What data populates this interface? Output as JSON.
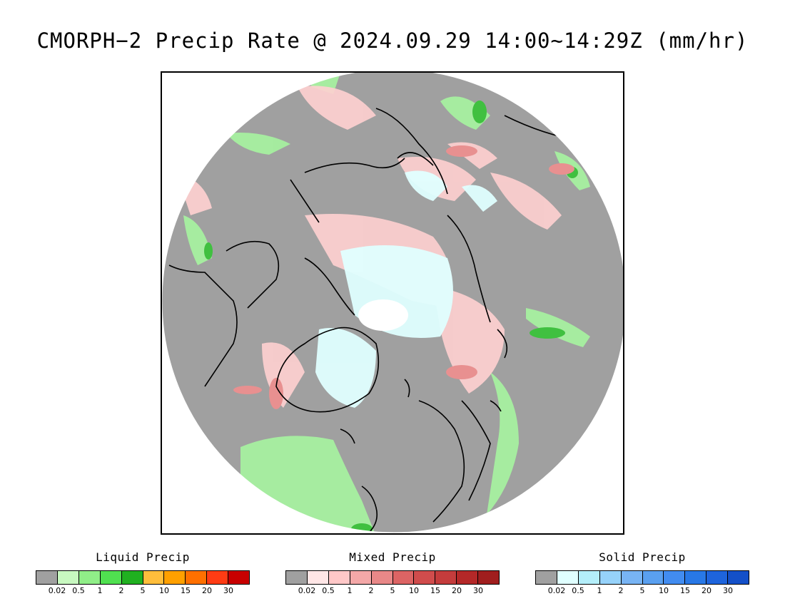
{
  "title": "CMORPH−2 Precip Rate @ 2024.09.29 14:00~14:29Z (mm/hr)",
  "map": {
    "projection": "north polar stereographic",
    "background_color": "#a0a0a0",
    "coastline_color": "#000000"
  },
  "legends": [
    {
      "title": "Liquid Precip",
      "colors": [
        "#a0a0a0",
        "#c8f8c0",
        "#90ee88",
        "#50e050",
        "#20b020",
        "#ffbe3c",
        "#ffa000",
        "#ff7000",
        "#ff3c14",
        "#c80000"
      ],
      "ticks": [
        "0.02",
        "0.5",
        "1",
        "2",
        "5",
        "10",
        "15",
        "20",
        "30"
      ]
    },
    {
      "title": "Mixed Precip",
      "colors": [
        "#a0a0a0",
        "#ffe6e6",
        "#ffc8c8",
        "#f4a8a8",
        "#e88888",
        "#dc6464",
        "#d04c4c",
        "#c43c3c",
        "#b42828",
        "#a01e1e"
      ],
      "ticks": [
        "0.02",
        "0.5",
        "1",
        "2",
        "5",
        "10",
        "15",
        "20",
        "30"
      ]
    },
    {
      "title": "Solid Precip",
      "colors": [
        "#a0a0a0",
        "#e0ffff",
        "#b4eefa",
        "#96d2fa",
        "#78b4f4",
        "#5aa0f0",
        "#428cf0",
        "#2878e6",
        "#1e64dc",
        "#1450c8"
      ],
      "ticks": [
        "0.02",
        "0.5",
        "1",
        "2",
        "5",
        "10",
        "15",
        "20",
        "30"
      ]
    }
  ]
}
